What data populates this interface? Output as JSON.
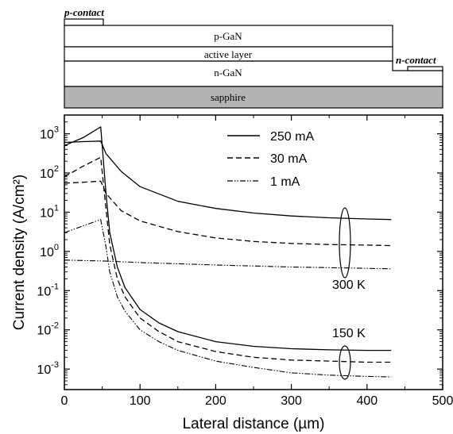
{
  "device": {
    "p_contact": "p-contact",
    "n_contact": "n-contact",
    "p_gan": "p-GaN",
    "active_layer": "active layer",
    "n_gan": "n-GaN",
    "sapphire": "sapphire",
    "sapphire_color": "#b4b4b4"
  },
  "chart_data": {
    "type": "line",
    "xlabel": "Lateral distance (µm)",
    "ylabel": "Current density (A/cm²)",
    "xlim": [
      0,
      500
    ],
    "ylim": [
      0.0003,
      3000
    ],
    "yscale": "log",
    "x_ticks": [
      0,
      100,
      200,
      300,
      400,
      500
    ],
    "y_ticks": [
      {
        "value": 0.001,
        "base": "10",
        "exp": "-3"
      },
      {
        "value": 0.01,
        "base": "10",
        "exp": "-2"
      },
      {
        "value": 0.1,
        "base": "10",
        "exp": "-1"
      },
      {
        "value": 1,
        "base": "10",
        "exp": "0"
      },
      {
        "value": 10,
        "base": "10",
        "exp": "1"
      },
      {
        "value": 100,
        "base": "10",
        "exp": "2"
      },
      {
        "value": 1000,
        "base": "10",
        "exp": "3"
      }
    ],
    "grid": false,
    "legend": {
      "placement": "top-center",
      "entries": [
        {
          "name": "250 mA",
          "style": "solid"
        },
        {
          "name": "30 mA",
          "style": "dashed"
        },
        {
          "name": "1 mA",
          "style": "dashdotdot"
        }
      ]
    },
    "annotations": [
      {
        "text": "300 K",
        "x": 370,
        "y": 1.3
      },
      {
        "text": "150 K",
        "x": 370,
        "y": 0.0015
      }
    ],
    "series": [
      {
        "name": "250 mA",
        "temperature": "300 K",
        "style": "solid",
        "x": [
          0,
          25,
          48,
          55,
          75,
          100,
          150,
          200,
          250,
          300,
          350,
          400,
          432
        ],
        "y": [
          600,
          630,
          650,
          310,
          110,
          45,
          19,
          12.5,
          9.5,
          8,
          7.2,
          6.7,
          6.5
        ]
      },
      {
        "name": "30 mA",
        "temperature": "300 K",
        "style": "dashed",
        "x": [
          0,
          25,
          48,
          55,
          75,
          100,
          150,
          200,
          250,
          300,
          350,
          400,
          432
        ],
        "y": [
          55,
          58,
          62,
          30,
          11,
          6,
          3.2,
          2.2,
          1.8,
          1.6,
          1.5,
          1.45,
          1.4
        ]
      },
      {
        "name": "1 mA",
        "temperature": "300 K",
        "style": "dashdotdot",
        "x": [
          0,
          50,
          100,
          200,
          300,
          400,
          432
        ],
        "y": [
          0.6,
          0.57,
          0.52,
          0.45,
          0.4,
          0.37,
          0.36
        ]
      },
      {
        "name": "250 mA",
        "temperature": "150 K",
        "style": "solid",
        "x": [
          0,
          25,
          48,
          55,
          60,
          70,
          80,
          100,
          125,
          150,
          200,
          250,
          300,
          350,
          400,
          432
        ],
        "y": [
          500,
          800,
          1500,
          30,
          3,
          0.4,
          0.12,
          0.033,
          0.015,
          0.009,
          0.005,
          0.0038,
          0.0033,
          0.0031,
          0.003,
          0.003
        ]
      },
      {
        "name": "30 mA",
        "temperature": "150 K",
        "style": "dashed",
        "x": [
          0,
          25,
          48,
          55,
          60,
          70,
          80,
          100,
          125,
          150,
          200,
          250,
          300,
          350,
          400,
          432
        ],
        "y": [
          80,
          150,
          250,
          12,
          1.5,
          0.2,
          0.07,
          0.02,
          0.009,
          0.005,
          0.0028,
          0.002,
          0.0017,
          0.0016,
          0.0015,
          0.0015
        ]
      },
      {
        "name": "1 mA",
        "temperature": "150 K",
        "style": "dashdotdot",
        "x": [
          0,
          25,
          48,
          55,
          60,
          70,
          80,
          100,
          125,
          150,
          200,
          250,
          300,
          350,
          400,
          432
        ],
        "y": [
          3,
          4.5,
          6.5,
          1.3,
          0.3,
          0.07,
          0.03,
          0.01,
          0.005,
          0.003,
          0.0016,
          0.0011,
          0.0008,
          0.0007,
          0.00065,
          0.00063
        ]
      }
    ]
  }
}
